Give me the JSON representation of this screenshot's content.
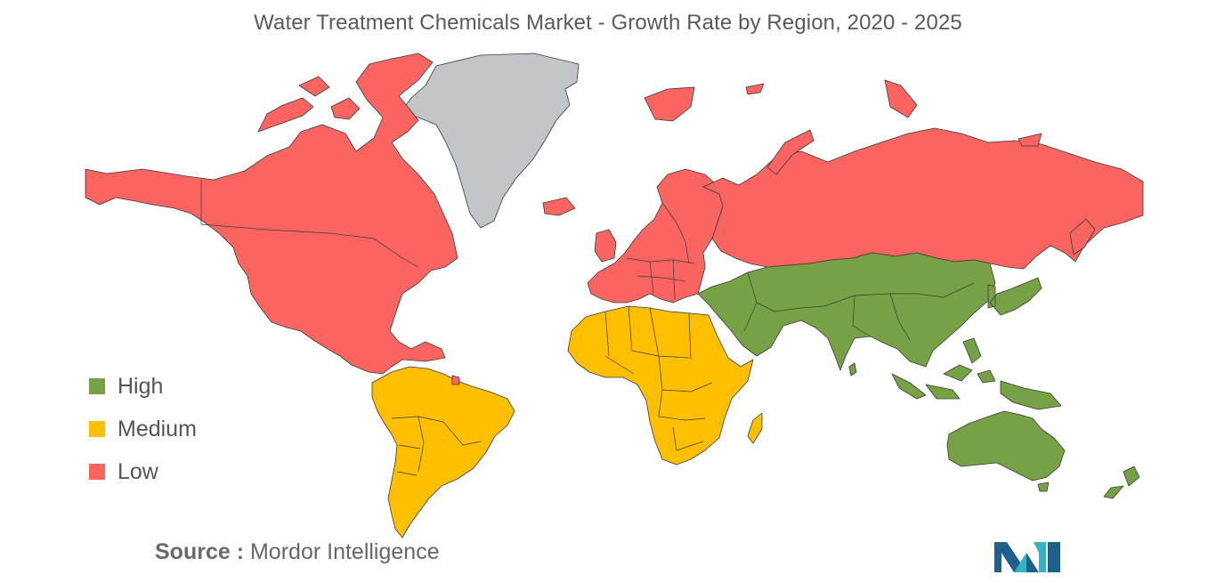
{
  "title": "Water Treatment Chemicals Market - Growth Rate by Region, 2020 - 2025",
  "colors": {
    "high": "#77a145",
    "medium": "#fdbf00",
    "low": "#fa6561",
    "no_data": "#c3c5c9",
    "border": "#3a3a3a"
  },
  "legend": [
    {
      "label": "High",
      "color": "#77a145"
    },
    {
      "label": "Medium",
      "color": "#fdbf00"
    },
    {
      "label": "Low",
      "color": "#fa6561"
    }
  ],
  "regions": {
    "north_america": "Low",
    "south_america": "Medium",
    "europe": "Low",
    "russia": "Low",
    "middle_east_and_africa": "Medium",
    "asia_pacific": "High",
    "greenland": "No data"
  },
  "source": {
    "prefix": "Source :",
    "text": "Mordor Intelligence"
  },
  "logo": {
    "icon": "mordor-intelligence-logo"
  }
}
